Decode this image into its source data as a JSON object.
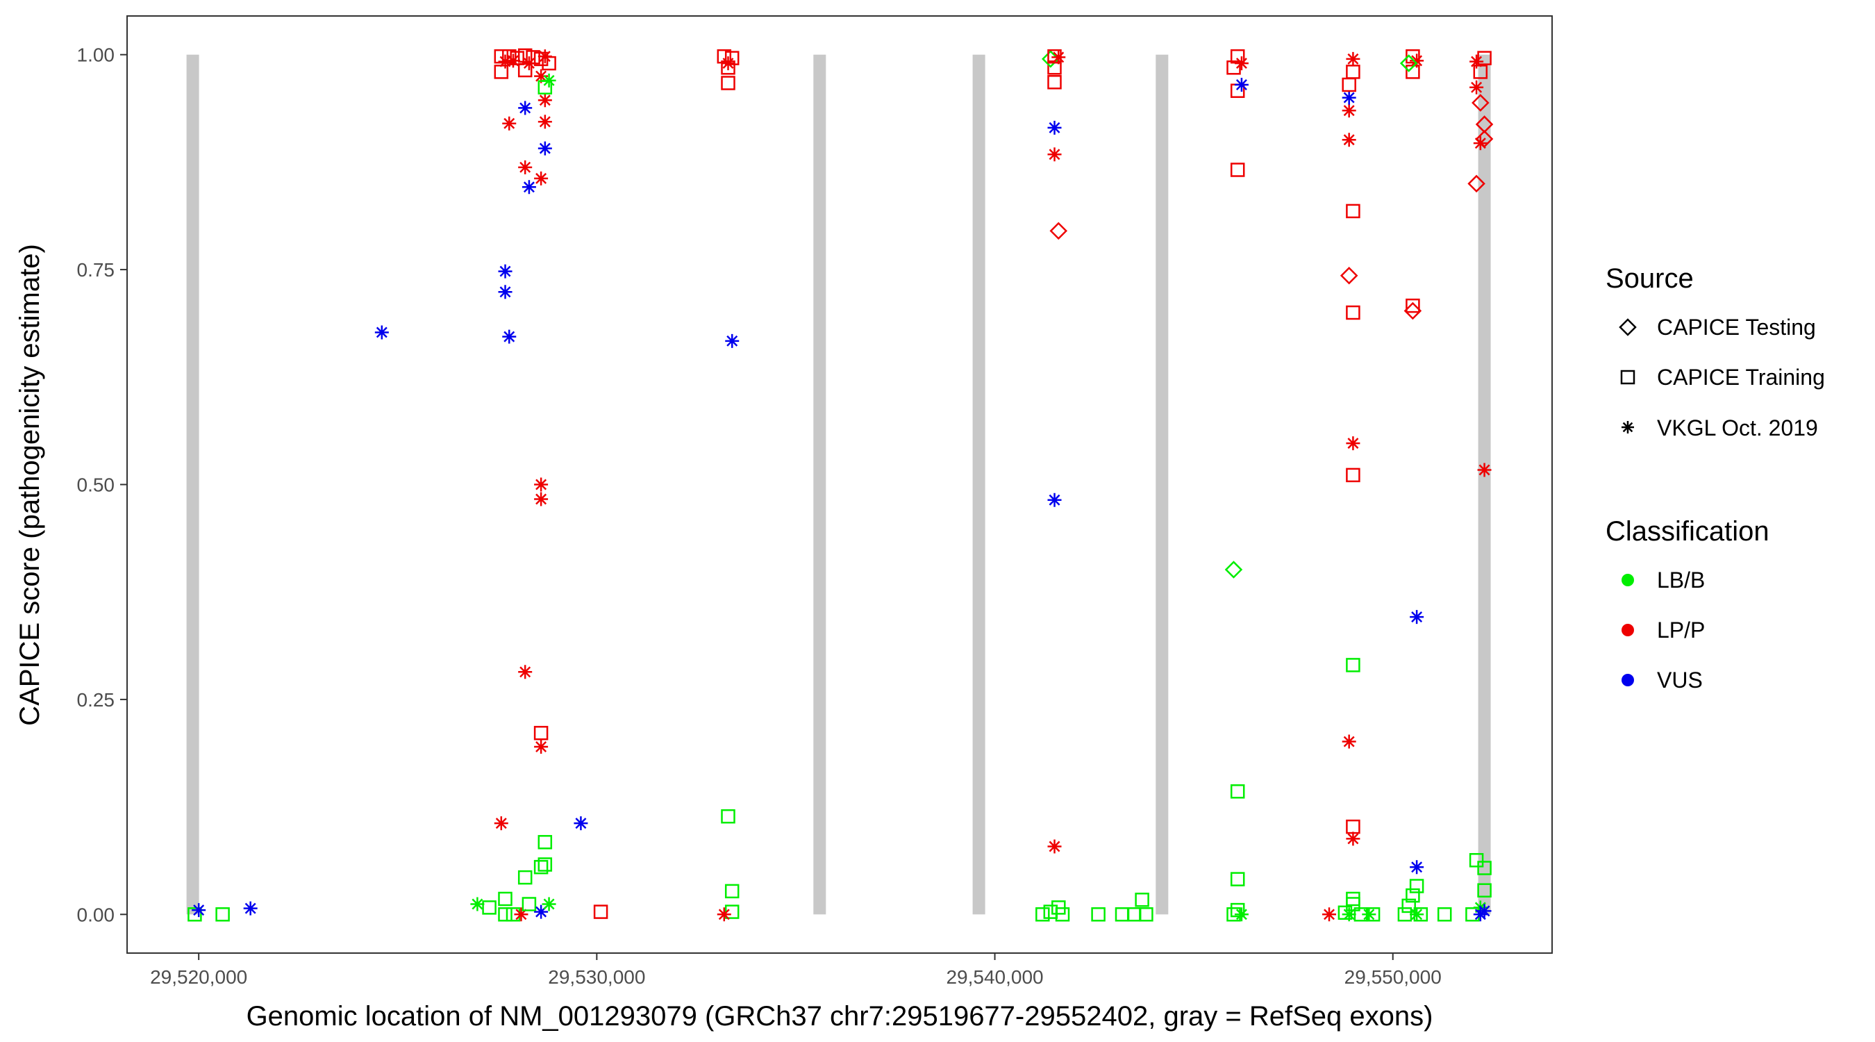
{
  "chart_data": {
    "type": "scatter",
    "title": "",
    "xlabel": "Genomic location of NM_001293079 (GRCh37 chr7:29519677-29552402, gray = RefSeq exons)",
    "ylabel": "CAPICE score (pathogenicity estimate)",
    "xlim": [
      29518200,
      29554000
    ],
    "ylim": [
      -0.045,
      1.045
    ],
    "x_ticks": [
      {
        "value": 29520000,
        "label": "29,520,000"
      },
      {
        "value": 29530000,
        "label": "29,530,000"
      },
      {
        "value": 29540000,
        "label": "29,540,000"
      },
      {
        "value": 29550000,
        "label": "29,550,000"
      }
    ],
    "y_ticks": [
      {
        "value": 0,
        "label": "0.00"
      },
      {
        "value": 0.25,
        "label": "0.25"
      },
      {
        "value": 0.5,
        "label": "0.50"
      },
      {
        "value": 0.75,
        "label": "0.75"
      },
      {
        "value": 1,
        "label": "1.00"
      }
    ],
    "exons": [
      29519850,
      29535600,
      29539600,
      29544200,
      29552300
    ],
    "grid": false,
    "legend_position": "right",
    "legends": [
      {
        "title": "Source",
        "entries": [
          {
            "label": "CAPICE Testing",
            "shape": "diamond"
          },
          {
            "label": "CAPICE Training",
            "shape": "square"
          },
          {
            "label": "VKGL Oct. 2019",
            "shape": "asterisk"
          }
        ]
      },
      {
        "title": "Classification",
        "entries": [
          {
            "label": "LB/B",
            "color": "#00ee00"
          },
          {
            "label": "LP/P",
            "color": "#ee0000"
          },
          {
            "label": "VUS",
            "color": "#0000ee"
          }
        ]
      }
    ],
    "colors": {
      "LB/B": "#00ee00",
      "LP/P": "#ee0000",
      "VUS": "#0000ee",
      "exon": "#c8c8c8"
    },
    "points": [
      {
        "x": 29519900,
        "y": 0.0,
        "s": "square",
        "c": "LB/B"
      },
      {
        "x": 29520000,
        "y": 0.005,
        "s": "asterisk",
        "c": "VUS"
      },
      {
        "x": 29520600,
        "y": 0.0,
        "s": "square",
        "c": "LB/B"
      },
      {
        "x": 29521300,
        "y": 0.007,
        "s": "asterisk",
        "c": "VUS"
      },
      {
        "x": 29524600,
        "y": 0.677,
        "s": "asterisk",
        "c": "VUS"
      },
      {
        "x": 29527700,
        "y": 0.748,
        "s": "asterisk",
        "c": "VUS"
      },
      {
        "x": 29527700,
        "y": 0.724,
        "s": "asterisk",
        "c": "VUS"
      },
      {
        "x": 29527800,
        "y": 0.672,
        "s": "asterisk",
        "c": "VUS"
      },
      {
        "x": 29527800,
        "y": 0.92,
        "s": "asterisk",
        "c": "LP/P"
      },
      {
        "x": 29527600,
        "y": 0.106,
        "s": "asterisk",
        "c": "LP/P"
      },
      {
        "x": 29528200,
        "y": 0.938,
        "s": "asterisk",
        "c": "VUS"
      },
      {
        "x": 29528300,
        "y": 0.846,
        "s": "asterisk",
        "c": "VUS"
      },
      {
        "x": 29528700,
        "y": 0.891,
        "s": "asterisk",
        "c": "VUS"
      },
      {
        "x": 29528200,
        "y": 0.869,
        "s": "asterisk",
        "c": "LP/P"
      },
      {
        "x": 29528600,
        "y": 0.856,
        "s": "asterisk",
        "c": "LP/P"
      },
      {
        "x": 29528700,
        "y": 0.922,
        "s": "asterisk",
        "c": "LP/P"
      },
      {
        "x": 29528700,
        "y": 0.947,
        "s": "asterisk",
        "c": "LP/P"
      },
      {
        "x": 29528600,
        "y": 0.5,
        "s": "asterisk",
        "c": "LP/P"
      },
      {
        "x": 29528600,
        "y": 0.483,
        "s": "asterisk",
        "c": "LP/P"
      },
      {
        "x": 29528200,
        "y": 0.282,
        "s": "asterisk",
        "c": "LP/P"
      },
      {
        "x": 29528600,
        "y": 0.195,
        "s": "asterisk",
        "c": "LP/P"
      },
      {
        "x": 29528600,
        "y": 0.211,
        "s": "square",
        "c": "LP/P"
      },
      {
        "x": 29528700,
        "y": 0.084,
        "s": "square",
        "c": "LB/B"
      },
      {
        "x": 29528700,
        "y": 0.058,
        "s": "square",
        "c": "LB/B"
      },
      {
        "x": 29528600,
        "y": 0.055,
        "s": "square",
        "c": "LB/B"
      },
      {
        "x": 29528200,
        "y": 0.043,
        "s": "square",
        "c": "LB/B"
      },
      {
        "x": 29527000,
        "y": 0.012,
        "s": "asterisk",
        "c": "LB/B"
      },
      {
        "x": 29527300,
        "y": 0.008,
        "s": "square",
        "c": "LB/B"
      },
      {
        "x": 29527700,
        "y": 0.018,
        "s": "square",
        "c": "LB/B"
      },
      {
        "x": 29527700,
        "y": 0.0,
        "s": "square",
        "c": "LB/B"
      },
      {
        "x": 29527900,
        "y": 0.0,
        "s": "square",
        "c": "LB/B"
      },
      {
        "x": 29528100,
        "y": 0.0,
        "s": "asterisk",
        "c": "LP/P"
      },
      {
        "x": 29528300,
        "y": 0.012,
        "s": "square",
        "c": "LB/B"
      },
      {
        "x": 29528600,
        "y": 0.003,
        "s": "asterisk",
        "c": "VUS"
      },
      {
        "x": 29528800,
        "y": 0.012,
        "s": "asterisk",
        "c": "LB/B"
      },
      {
        "x": 29527600,
        "y": 0.98,
        "s": "square",
        "c": "LP/P"
      },
      {
        "x": 29527600,
        "y": 0.998,
        "s": "square",
        "c": "LP/P"
      },
      {
        "x": 29527700,
        "y": 0.992,
        "s": "asterisk",
        "c": "LP/P"
      },
      {
        "x": 29527800,
        "y": 0.998,
        "s": "square",
        "c": "LP/P"
      },
      {
        "x": 29527900,
        "y": 0.993,
        "s": "asterisk",
        "c": "LP/P"
      },
      {
        "x": 29528000,
        "y": 0.996,
        "s": "square",
        "c": "LP/P"
      },
      {
        "x": 29528200,
        "y": 0.999,
        "s": "square",
        "c": "LP/P"
      },
      {
        "x": 29528300,
        "y": 0.99,
        "s": "asterisk",
        "c": "LP/P"
      },
      {
        "x": 29528400,
        "y": 0.997,
        "s": "square",
        "c": "LP/P"
      },
      {
        "x": 29528600,
        "y": 0.995,
        "s": "square",
        "c": "LP/P"
      },
      {
        "x": 29528700,
        "y": 0.998,
        "s": "asterisk",
        "c": "LP/P"
      },
      {
        "x": 29528800,
        "y": 0.99,
        "s": "square",
        "c": "LP/P"
      },
      {
        "x": 29528200,
        "y": 0.982,
        "s": "square",
        "c": "LP/P"
      },
      {
        "x": 29528600,
        "y": 0.975,
        "s": "asterisk",
        "c": "LP/P"
      },
      {
        "x": 29528700,
        "y": 0.962,
        "s": "square",
        "c": "LB/B"
      },
      {
        "x": 29528800,
        "y": 0.97,
        "s": "asterisk",
        "c": "LB/B"
      },
      {
        "x": 29530100,
        "y": 0.003,
        "s": "square",
        "c": "LP/P"
      },
      {
        "x": 29529600,
        "y": 0.106,
        "s": "asterisk",
        "c": "VUS"
      },
      {
        "x": 29533300,
        "y": 0.114,
        "s": "square",
        "c": "LB/B"
      },
      {
        "x": 29533400,
        "y": 0.027,
        "s": "square",
        "c": "LB/B"
      },
      {
        "x": 29533400,
        "y": 0.003,
        "s": "square",
        "c": "LB/B"
      },
      {
        "x": 29533200,
        "y": 0.0,
        "s": "asterisk",
        "c": "LP/P"
      },
      {
        "x": 29533400,
        "y": 0.667,
        "s": "asterisk",
        "c": "VUS"
      },
      {
        "x": 29533200,
        "y": 0.998,
        "s": "square",
        "c": "LP/P"
      },
      {
        "x": 29533300,
        "y": 0.99,
        "s": "asterisk",
        "c": "LP/P"
      },
      {
        "x": 29533400,
        "y": 0.996,
        "s": "square",
        "c": "LP/P"
      },
      {
        "x": 29533300,
        "y": 0.985,
        "s": "square",
        "c": "LP/P"
      },
      {
        "x": 29533300,
        "y": 0.967,
        "s": "square",
        "c": "LP/P"
      },
      {
        "x": 29541200,
        "y": 0.0,
        "s": "square",
        "c": "LB/B"
      },
      {
        "x": 29541400,
        "y": 0.003,
        "s": "square",
        "c": "LB/B"
      },
      {
        "x": 29541600,
        "y": 0.008,
        "s": "square",
        "c": "LB/B"
      },
      {
        "x": 29541700,
        "y": 0.0,
        "s": "square",
        "c": "LB/B"
      },
      {
        "x": 29541500,
        "y": 0.079,
        "s": "asterisk",
        "c": "LP/P"
      },
      {
        "x": 29541500,
        "y": 0.482,
        "s": "asterisk",
        "c": "VUS"
      },
      {
        "x": 29541600,
        "y": 0.795,
        "s": "diamond",
        "c": "LP/P"
      },
      {
        "x": 29541500,
        "y": 0.884,
        "s": "asterisk",
        "c": "LP/P"
      },
      {
        "x": 29541500,
        "y": 0.915,
        "s": "asterisk",
        "c": "VUS"
      },
      {
        "x": 29541500,
        "y": 0.968,
        "s": "square",
        "c": "LP/P"
      },
      {
        "x": 29541500,
        "y": 0.985,
        "s": "square",
        "c": "LP/P"
      },
      {
        "x": 29541400,
        "y": 0.995,
        "s": "diamond",
        "c": "LB/B"
      },
      {
        "x": 29541500,
        "y": 0.998,
        "s": "square",
        "c": "LP/P"
      },
      {
        "x": 29541600,
        "y": 0.997,
        "s": "asterisk",
        "c": "LP/P"
      },
      {
        "x": 29542600,
        "y": 0.0,
        "s": "square",
        "c": "LB/B"
      },
      {
        "x": 29543200,
        "y": 0.0,
        "s": "square",
        "c": "LB/B"
      },
      {
        "x": 29543500,
        "y": 0.0,
        "s": "square",
        "c": "LB/B"
      },
      {
        "x": 29543700,
        "y": 0.017,
        "s": "square",
        "c": "LB/B"
      },
      {
        "x": 29543800,
        "y": 0.0,
        "s": "square",
        "c": "LB/B"
      },
      {
        "x": 29546000,
        "y": 0.0,
        "s": "square",
        "c": "LB/B"
      },
      {
        "x": 29546100,
        "y": 0.005,
        "s": "square",
        "c": "LB/B"
      },
      {
        "x": 29546200,
        "y": 0.0,
        "s": "asterisk",
        "c": "LB/B"
      },
      {
        "x": 29546100,
        "y": 0.041,
        "s": "square",
        "c": "LB/B"
      },
      {
        "x": 29546100,
        "y": 0.143,
        "s": "square",
        "c": "LB/B"
      },
      {
        "x": 29546000,
        "y": 0.401,
        "s": "diamond",
        "c": "LB/B"
      },
      {
        "x": 29546100,
        "y": 0.866,
        "s": "square",
        "c": "LP/P"
      },
      {
        "x": 29546100,
        "y": 0.958,
        "s": "square",
        "c": "LP/P"
      },
      {
        "x": 29546200,
        "y": 0.965,
        "s": "asterisk",
        "c": "VUS"
      },
      {
        "x": 29546000,
        "y": 0.985,
        "s": "square",
        "c": "LP/P"
      },
      {
        "x": 29546100,
        "y": 0.998,
        "s": "square",
        "c": "LP/P"
      },
      {
        "x": 29546200,
        "y": 0.99,
        "s": "asterisk",
        "c": "LP/P"
      },
      {
        "x": 29548400,
        "y": 0.0,
        "s": "asterisk",
        "c": "LP/P"
      },
      {
        "x": 29548800,
        "y": 0.002,
        "s": "square",
        "c": "LB/B"
      },
      {
        "x": 29548900,
        "y": 0.0,
        "s": "asterisk",
        "c": "LB/B"
      },
      {
        "x": 29549000,
        "y": 0.012,
        "s": "square",
        "c": "LB/B"
      },
      {
        "x": 29549000,
        "y": 0.018,
        "s": "square",
        "c": "LB/B"
      },
      {
        "x": 29549200,
        "y": 0.0,
        "s": "square",
        "c": "LB/B"
      },
      {
        "x": 29549400,
        "y": 0.0,
        "s": "asterisk",
        "c": "LB/B"
      },
      {
        "x": 29549500,
        "y": 0.0,
        "s": "square",
        "c": "LB/B"
      },
      {
        "x": 29549000,
        "y": 0.088,
        "s": "asterisk",
        "c": "LP/P"
      },
      {
        "x": 29549000,
        "y": 0.102,
        "s": "square",
        "c": "LP/P"
      },
      {
        "x": 29548900,
        "y": 0.201,
        "s": "asterisk",
        "c": "LP/P"
      },
      {
        "x": 29549000,
        "y": 0.29,
        "s": "square",
        "c": "LB/B"
      },
      {
        "x": 29549000,
        "y": 0.511,
        "s": "square",
        "c": "LP/P"
      },
      {
        "x": 29549000,
        "y": 0.548,
        "s": "asterisk",
        "c": "LP/P"
      },
      {
        "x": 29549000,
        "y": 0.7,
        "s": "square",
        "c": "LP/P"
      },
      {
        "x": 29548900,
        "y": 0.743,
        "s": "diamond",
        "c": "LP/P"
      },
      {
        "x": 29549000,
        "y": 0.818,
        "s": "square",
        "c": "LP/P"
      },
      {
        "x": 29548900,
        "y": 0.901,
        "s": "asterisk",
        "c": "LP/P"
      },
      {
        "x": 29548900,
        "y": 0.935,
        "s": "asterisk",
        "c": "LP/P"
      },
      {
        "x": 29548900,
        "y": 0.95,
        "s": "asterisk",
        "c": "VUS"
      },
      {
        "x": 29548900,
        "y": 0.965,
        "s": "square",
        "c": "LP/P"
      },
      {
        "x": 29549000,
        "y": 0.98,
        "s": "square",
        "c": "LP/P"
      },
      {
        "x": 29549000,
        "y": 0.995,
        "s": "asterisk",
        "c": "LP/P"
      },
      {
        "x": 29550300,
        "y": 0.0,
        "s": "square",
        "c": "LB/B"
      },
      {
        "x": 29550400,
        "y": 0.01,
        "s": "square",
        "c": "LB/B"
      },
      {
        "x": 29550500,
        "y": 0.022,
        "s": "square",
        "c": "LB/B"
      },
      {
        "x": 29550600,
        "y": 0.033,
        "s": "square",
        "c": "LB/B"
      },
      {
        "x": 29550700,
        "y": 0.0,
        "s": "square",
        "c": "LB/B"
      },
      {
        "x": 29550600,
        "y": 0.0,
        "s": "asterisk",
        "c": "LB/B"
      },
      {
        "x": 29550600,
        "y": 0.055,
        "s": "asterisk",
        "c": "VUS"
      },
      {
        "x": 29550600,
        "y": 0.346,
        "s": "asterisk",
        "c": "VUS"
      },
      {
        "x": 29550500,
        "y": 0.702,
        "s": "diamond",
        "c": "LP/P"
      },
      {
        "x": 29550500,
        "y": 0.708,
        "s": "square",
        "c": "LP/P"
      },
      {
        "x": 29550500,
        "y": 0.98,
        "s": "square",
        "c": "LP/P"
      },
      {
        "x": 29550500,
        "y": 0.998,
        "s": "square",
        "c": "LP/P"
      },
      {
        "x": 29550600,
        "y": 0.993,
        "s": "asterisk",
        "c": "LP/P"
      },
      {
        "x": 29550400,
        "y": 0.99,
        "s": "diamond",
        "c": "LB/B"
      },
      {
        "x": 29551300,
        "y": 0.0,
        "s": "square",
        "c": "LB/B"
      },
      {
        "x": 29552000,
        "y": 0.0,
        "s": "square",
        "c": "LB/B"
      },
      {
        "x": 29552100,
        "y": 0.063,
        "s": "square",
        "c": "LB/B"
      },
      {
        "x": 29552300,
        "y": 0.054,
        "s": "square",
        "c": "LB/B"
      },
      {
        "x": 29552300,
        "y": 0.028,
        "s": "square",
        "c": "LB/B"
      },
      {
        "x": 29552200,
        "y": 0.008,
        "s": "asterisk",
        "c": "LB/B"
      },
      {
        "x": 29552200,
        "y": 0.0,
        "s": "asterisk",
        "c": "VUS"
      },
      {
        "x": 29552300,
        "y": 0.004,
        "s": "asterisk",
        "c": "VUS"
      },
      {
        "x": 29552300,
        "y": 0.517,
        "s": "asterisk",
        "c": "LP/P"
      },
      {
        "x": 29552100,
        "y": 0.85,
        "s": "diamond",
        "c": "LP/P"
      },
      {
        "x": 29552200,
        "y": 0.897,
        "s": "asterisk",
        "c": "LP/P"
      },
      {
        "x": 29552300,
        "y": 0.902,
        "s": "diamond",
        "c": "LP/P"
      },
      {
        "x": 29552300,
        "y": 0.919,
        "s": "diamond",
        "c": "LP/P"
      },
      {
        "x": 29552200,
        "y": 0.944,
        "s": "diamond",
        "c": "LP/P"
      },
      {
        "x": 29552100,
        "y": 0.962,
        "s": "asterisk",
        "c": "LP/P"
      },
      {
        "x": 29552200,
        "y": 0.98,
        "s": "square",
        "c": "LP/P"
      },
      {
        "x": 29552300,
        "y": 0.996,
        "s": "square",
        "c": "LP/P"
      },
      {
        "x": 29552100,
        "y": 0.992,
        "s": "asterisk",
        "c": "LP/P"
      }
    ]
  }
}
